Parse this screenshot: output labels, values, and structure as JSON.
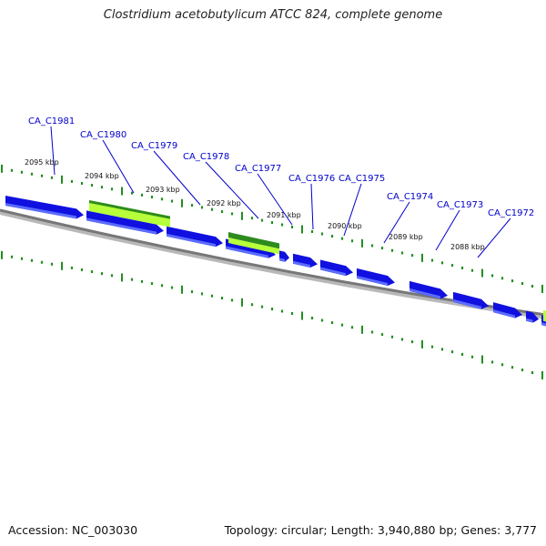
{
  "header": {
    "title": "Clostridium acetobutylicum ATCC 824, complete genome"
  },
  "footer": {
    "accession": "Accession: NC_003030",
    "topology": "Topology: circular; Length: 3,940,880 bp; Genes: 3,777"
  },
  "colors": {
    "gene_forward": "#1010e0",
    "gene_forward_shade": "#5a6cff",
    "rna_light": "#b6ff3a",
    "rna_dark": "#2e8b1e",
    "backbone": "#888888",
    "tick": "#1f8f1f",
    "label": "#0000cc"
  },
  "scale_labels": [
    "2095 kbp",
    "2094 kbp",
    "2093 kbp",
    "2092 kbp",
    "2091 kbp",
    "2090 kbp",
    "2089 kbp",
    "2088 kbp"
  ],
  "gene_labels": [
    "CA_C1981",
    "CA_C1980",
    "CA_C1979",
    "CA_C1978",
    "CA_C1977",
    "CA_C1976",
    "CA_C1975",
    "CA_C1974",
    "CA_C1973",
    "CA_C1972"
  ]
}
